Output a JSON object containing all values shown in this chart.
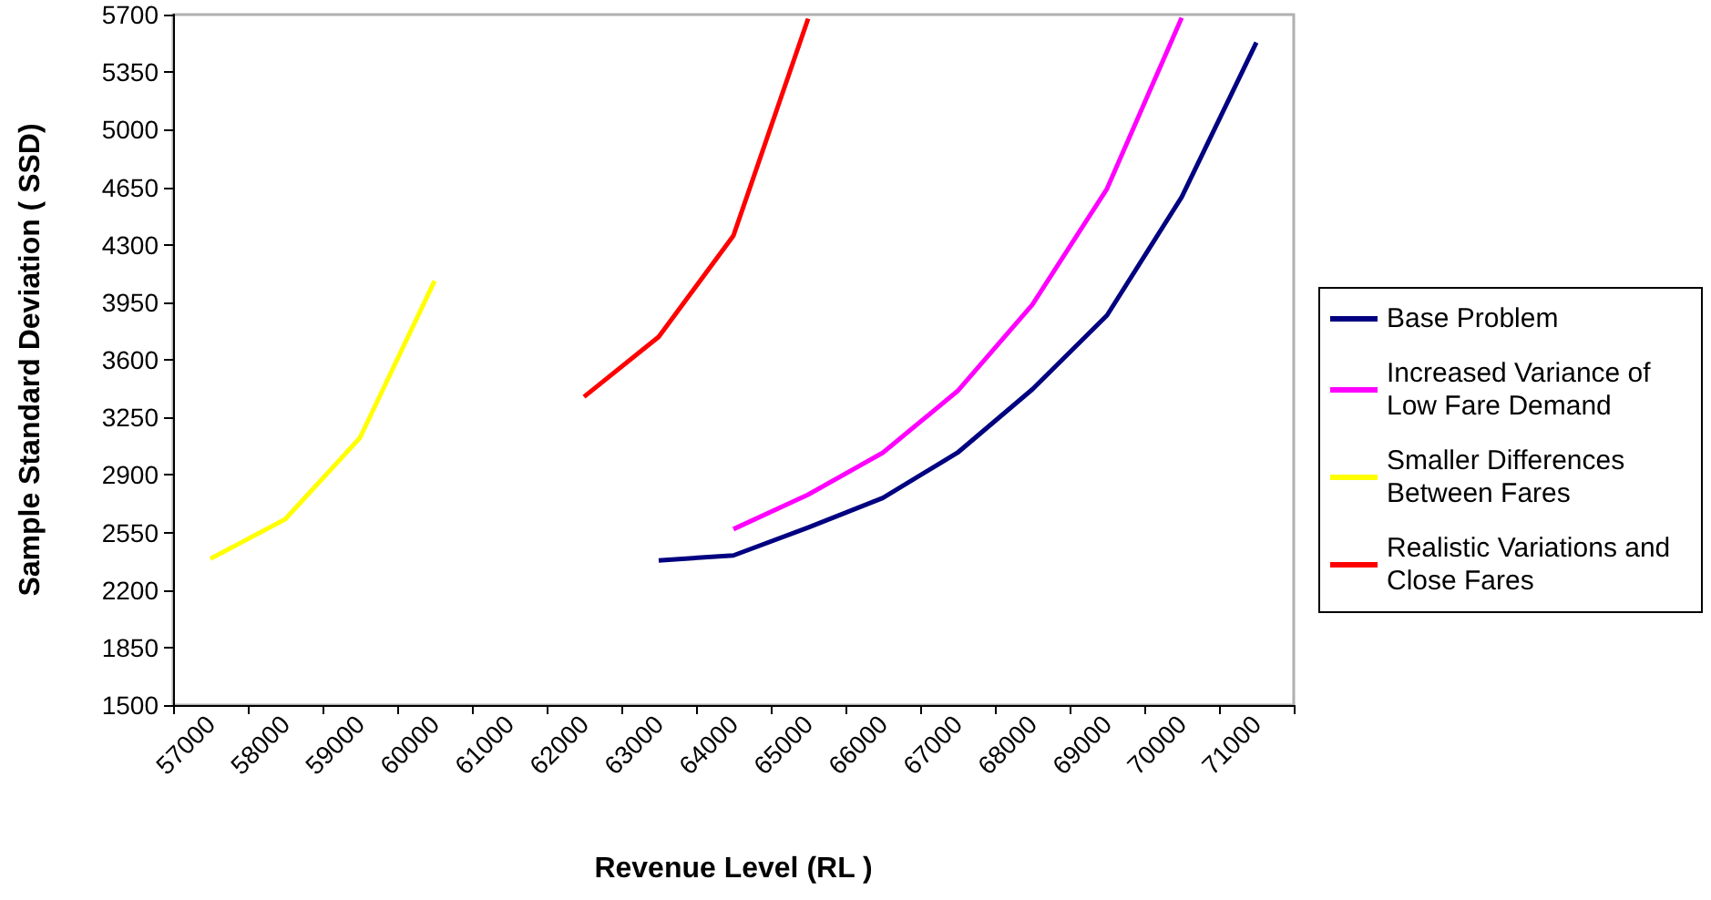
{
  "chart_data": {
    "type": "line",
    "xlabel": "Revenue Level (RL )",
    "ylabel": "Sample Standard Deviation ( SSD)",
    "categories": [
      "57000",
      "58000",
      "59000",
      "60000",
      "61000",
      "62000",
      "63000",
      "64000",
      "65000",
      "66000",
      "67000",
      "68000",
      "69000",
      "70000",
      "71000"
    ],
    "series": [
      {
        "name": "Base Problem",
        "color": "#000080",
        "values": [
          null,
          null,
          null,
          null,
          null,
          null,
          2380,
          2410,
          2580,
          2760,
          3035,
          3420,
          3870,
          4590,
          5530
        ]
      },
      {
        "name": "Increased Variance of Low Fare Demand",
        "color": "#ff00ff",
        "values": [
          null,
          null,
          null,
          null,
          null,
          null,
          null,
          2570,
          2780,
          3035,
          3410,
          3935,
          4640,
          5680,
          null
        ]
      },
      {
        "name": "Smaller Differences Between Fares",
        "color": "#ffff00",
        "values": [
          2390,
          2630,
          3125,
          4080,
          null,
          null,
          null,
          null,
          null,
          null,
          null,
          null,
          null,
          null,
          null
        ]
      },
      {
        "name": "Realistic Variations and Close Fares",
        "color": "#ff0000",
        "values": [
          null,
          null,
          null,
          null,
          null,
          3375,
          3740,
          4355,
          5675,
          null,
          null,
          null,
          null,
          null,
          null
        ]
      }
    ],
    "ylim": [
      1500,
      5700
    ],
    "yticks": [
      1500,
      1850,
      2200,
      2550,
      2900,
      3250,
      3600,
      3950,
      4300,
      4650,
      5000,
      5350,
      5700
    ],
    "grid": false,
    "legend": "right",
    "marker": "none",
    "line_style": "solid"
  }
}
